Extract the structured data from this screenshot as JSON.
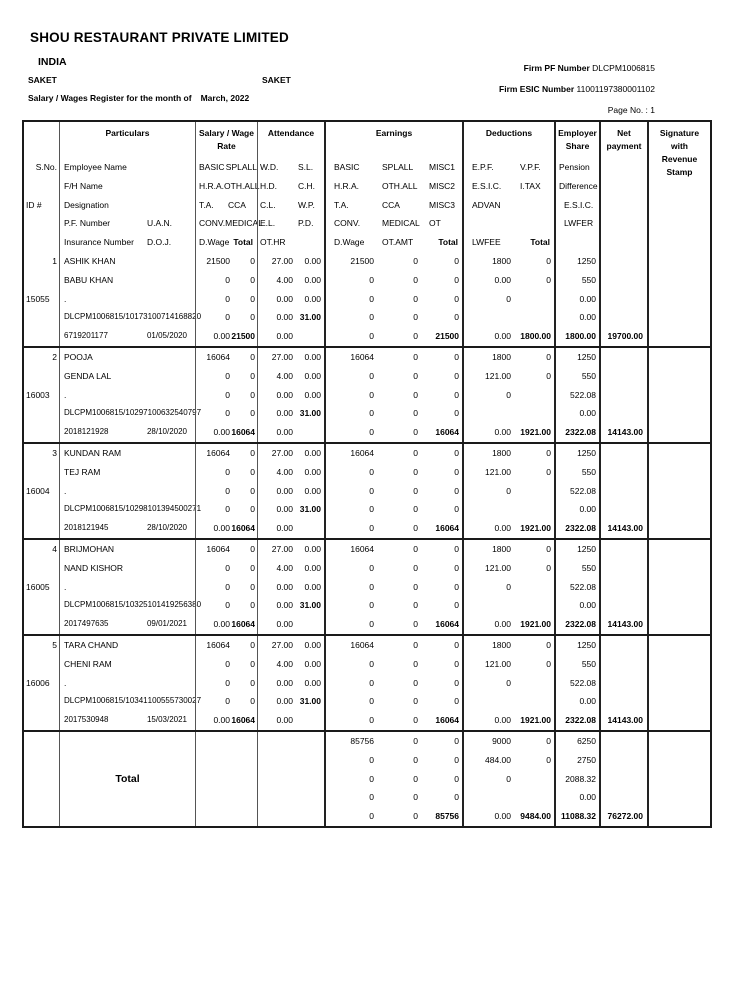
{
  "page": {
    "company": "SHOU RESTAURANT PRIVATE LIMITED",
    "country": "INDIA",
    "location_left": "SAKET",
    "location_center": "SAKET",
    "register_label": "Salary / Wages Register for the month of",
    "register_month": "March, 2022",
    "firm_pf_label": "Firm PF Number",
    "firm_pf_value": "DLCPM1006815",
    "firm_esic_label": "Firm ESIC Number",
    "firm_esic_value": "11001197380001102",
    "page_no": "Page No. : 1"
  },
  "head": {
    "sno_label": "S.No.",
    "id_label": "ID #",
    "particulars": {
      "title": "Particulars",
      "rows": [
        [
          "Employee Name",
          ""
        ],
        [
          "F/H Name",
          ""
        ],
        [
          "Designation",
          ""
        ],
        [
          "P.F. Number",
          "U.A.N."
        ],
        [
          "Insurance Number",
          "D.O.J."
        ]
      ]
    },
    "salary": {
      "title1": "Salary / Wage",
      "title2": "Rate",
      "rows": [
        [
          "BASIC",
          "SPLALL"
        ],
        [
          "H.R.A.",
          "OTH.ALL"
        ],
        [
          "T.A.",
          "CCA"
        ],
        [
          "CONV.",
          "MEDICAL"
        ],
        [
          "D.Wage",
          "Total"
        ]
      ]
    },
    "attendance": {
      "title1": "Attendance",
      "rows": [
        [
          "W.D.",
          "S.L."
        ],
        [
          "H.D.",
          "C.H."
        ],
        [
          "C.L.",
          "W.P."
        ],
        [
          "E.L.",
          "P.D."
        ],
        [
          "OT.HR",
          ""
        ]
      ]
    },
    "earnings": {
      "title1": "Earnings",
      "rows": [
        [
          "BASIC",
          "SPLALL",
          "MISC1"
        ],
        [
          "H.R.A.",
          "OTH.ALL",
          "MISC2"
        ],
        [
          "T.A.",
          "CCA",
          "MISC3"
        ],
        [
          "CONV.",
          "MEDICAL",
          "OT"
        ],
        [
          "D.Wage",
          "OT.AMT",
          "Total"
        ]
      ]
    },
    "deductions": {
      "title1": "Deductions",
      "rows": [
        [
          "E.P.F.",
          "V.P.F."
        ],
        [
          "E.S.I.C.",
          "I.TAX"
        ],
        [
          "ADVAN",
          ""
        ],
        [
          "",
          ""
        ],
        [
          "LWFEE",
          "Total"
        ]
      ]
    },
    "employer": {
      "title1": "Employer",
      "title2": "Share",
      "rows": [
        "Pension",
        "Difference",
        "E.S.I.C.",
        "LWFER",
        ""
      ]
    },
    "net": {
      "title1": "Net",
      "title2": "payment"
    },
    "signature": {
      "t1": "Signature",
      "t2": "with",
      "t3": "Revenue",
      "t4": "Stamp"
    }
  },
  "employees": [
    {
      "sno": "1",
      "id": "15055",
      "name": "ASHIK KHAN",
      "father": "BABU KHAN",
      "designation": ".",
      "pf": "DLCPM1006815/10173",
      "uan": "100714168820",
      "insurance": "6719201177",
      "doj": "01/05/2020",
      "salary": [
        [
          "21500",
          "0"
        ],
        [
          "0",
          "0"
        ],
        [
          "0",
          "0"
        ],
        [
          "0",
          "0"
        ],
        [
          "0.00",
          "21500"
        ]
      ],
      "att": [
        [
          "27.00",
          "0.00"
        ],
        [
          "4.00",
          "0.00"
        ],
        [
          "0.00",
          "0.00"
        ],
        [
          "0.00",
          "31.00"
        ],
        [
          "0.00",
          ""
        ]
      ],
      "earn": [
        [
          "21500",
          "0",
          "0"
        ],
        [
          "0",
          "0",
          "0"
        ],
        [
          "0",
          "0",
          "0"
        ],
        [
          "0",
          "0",
          "0"
        ],
        [
          "0",
          "0",
          "21500"
        ]
      ],
      "ded": [
        [
          "1800",
          "0"
        ],
        [
          "0.00",
          "0"
        ],
        [
          "0",
          ""
        ],
        [
          "",
          ""
        ],
        [
          "0.00",
          "1800.00"
        ]
      ],
      "emp": [
        "1250",
        "550",
        "0.00",
        "0.00",
        "1800.00"
      ],
      "net": "19700.00"
    },
    {
      "sno": "2",
      "id": "16003",
      "name": "POOJA",
      "father": "GENDA LAL",
      "designation": ".",
      "pf": "DLCPM1006815/10297",
      "uan": "100632540797",
      "insurance": "2018121928",
      "doj": "28/10/2020",
      "salary": [
        [
          "16064",
          "0"
        ],
        [
          "0",
          "0"
        ],
        [
          "0",
          "0"
        ],
        [
          "0",
          "0"
        ],
        [
          "0.00",
          "16064"
        ]
      ],
      "att": [
        [
          "27.00",
          "0.00"
        ],
        [
          "4.00",
          "0.00"
        ],
        [
          "0.00",
          "0.00"
        ],
        [
          "0.00",
          "31.00"
        ],
        [
          "0.00",
          ""
        ]
      ],
      "earn": [
        [
          "16064",
          "0",
          "0"
        ],
        [
          "0",
          "0",
          "0"
        ],
        [
          "0",
          "0",
          "0"
        ],
        [
          "0",
          "0",
          "0"
        ],
        [
          "0",
          "0",
          "16064"
        ]
      ],
      "ded": [
        [
          "1800",
          "0"
        ],
        [
          "121.00",
          "0"
        ],
        [
          "0",
          ""
        ],
        [
          "",
          ""
        ],
        [
          "0.00",
          "1921.00"
        ]
      ],
      "emp": [
        "1250",
        "550",
        "522.08",
        "0.00",
        "2322.08"
      ],
      "net": "14143.00"
    },
    {
      "sno": "3",
      "id": "16004",
      "name": "KUNDAN RAM",
      "father": "TEJ RAM",
      "designation": ".",
      "pf": "DLCPM1006815/10298",
      "uan": "101394500271",
      "insurance": "2018121945",
      "doj": "28/10/2020",
      "salary": [
        [
          "16064",
          "0"
        ],
        [
          "0",
          "0"
        ],
        [
          "0",
          "0"
        ],
        [
          "0",
          "0"
        ],
        [
          "0.00",
          "16064"
        ]
      ],
      "att": [
        [
          "27.00",
          "0.00"
        ],
        [
          "4.00",
          "0.00"
        ],
        [
          "0.00",
          "0.00"
        ],
        [
          "0.00",
          "31.00"
        ],
        [
          "0.00",
          ""
        ]
      ],
      "earn": [
        [
          "16064",
          "0",
          "0"
        ],
        [
          "0",
          "0",
          "0"
        ],
        [
          "0",
          "0",
          "0"
        ],
        [
          "0",
          "0",
          "0"
        ],
        [
          "0",
          "0",
          "16064"
        ]
      ],
      "ded": [
        [
          "1800",
          "0"
        ],
        [
          "121.00",
          "0"
        ],
        [
          "0",
          ""
        ],
        [
          "",
          ""
        ],
        [
          "0.00",
          "1921.00"
        ]
      ],
      "emp": [
        "1250",
        "550",
        "522.08",
        "0.00",
        "2322.08"
      ],
      "net": "14143.00"
    },
    {
      "sno": "4",
      "id": "16005",
      "name": "BRIJMOHAN",
      "father": "NAND KISHOR",
      "designation": ".",
      "pf": "DLCPM1006815/10325",
      "uan": "101419256380",
      "insurance": "2017497635",
      "doj": "09/01/2021",
      "salary": [
        [
          "16064",
          "0"
        ],
        [
          "0",
          "0"
        ],
        [
          "0",
          "0"
        ],
        [
          "0",
          "0"
        ],
        [
          "0.00",
          "16064"
        ]
      ],
      "att": [
        [
          "27.00",
          "0.00"
        ],
        [
          "4.00",
          "0.00"
        ],
        [
          "0.00",
          "0.00"
        ],
        [
          "0.00",
          "31.00"
        ],
        [
          "0.00",
          ""
        ]
      ],
      "earn": [
        [
          "16064",
          "0",
          "0"
        ],
        [
          "0",
          "0",
          "0"
        ],
        [
          "0",
          "0",
          "0"
        ],
        [
          "0",
          "0",
          "0"
        ],
        [
          "0",
          "0",
          "16064"
        ]
      ],
      "ded": [
        [
          "1800",
          "0"
        ],
        [
          "121.00",
          "0"
        ],
        [
          "0",
          ""
        ],
        [
          "",
          ""
        ],
        [
          "0.00",
          "1921.00"
        ]
      ],
      "emp": [
        "1250",
        "550",
        "522.08",
        "0.00",
        "2322.08"
      ],
      "net": "14143.00"
    },
    {
      "sno": "5",
      "id": "16006",
      "name": "TARA CHAND",
      "father": "CHENI RAM",
      "designation": ".",
      "pf": "DLCPM1006815/10341",
      "uan": "100555730027",
      "insurance": "2017530948",
      "doj": "15/03/2021",
      "salary": [
        [
          "16064",
          "0"
        ],
        [
          "0",
          "0"
        ],
        [
          "0",
          "0"
        ],
        [
          "0",
          "0"
        ],
        [
          "0.00",
          "16064"
        ]
      ],
      "att": [
        [
          "27.00",
          "0.00"
        ],
        [
          "4.00",
          "0.00"
        ],
        [
          "0.00",
          "0.00"
        ],
        [
          "0.00",
          "31.00"
        ],
        [
          "0.00",
          ""
        ]
      ],
      "earn": [
        [
          "16064",
          "0",
          "0"
        ],
        [
          "0",
          "0",
          "0"
        ],
        [
          "0",
          "0",
          "0"
        ],
        [
          "0",
          "0",
          "0"
        ],
        [
          "0",
          "0",
          "16064"
        ]
      ],
      "ded": [
        [
          "1800",
          "0"
        ],
        [
          "121.00",
          "0"
        ],
        [
          "0",
          ""
        ],
        [
          "",
          ""
        ],
        [
          "0.00",
          "1921.00"
        ]
      ],
      "emp": [
        "1250",
        "550",
        "522.08",
        "0.00",
        "2322.08"
      ],
      "net": "14143.00"
    }
  ],
  "total": {
    "label": "Total",
    "earn": [
      [
        "85756",
        "0",
        "0"
      ],
      [
        "0",
        "0",
        "0"
      ],
      [
        "0",
        "0",
        "0"
      ],
      [
        "0",
        "0",
        "0"
      ],
      [
        "0",
        "0",
        "85756"
      ]
    ],
    "ded": [
      [
        "9000",
        "0"
      ],
      [
        "484.00",
        "0"
      ],
      [
        "0",
        ""
      ],
      [
        "",
        ""
      ],
      [
        "0.00",
        "9484.00"
      ]
    ],
    "emp": [
      "6250",
      "2750",
      "2088.32",
      "0.00",
      "11088.32"
    ],
    "net": "76272.00"
  }
}
